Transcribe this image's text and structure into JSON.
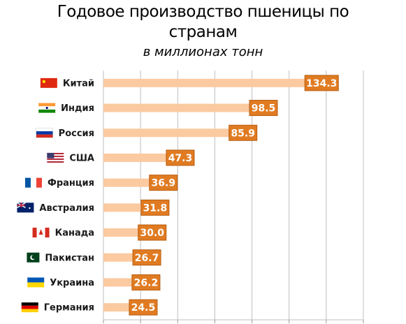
{
  "title_line1": "Годовое производство пшеницы по",
  "title_line2": "странам",
  "subtitle": "в миллионах тонн",
  "colors": {
    "bar": "#fbcaa0",
    "label_box": "#e07b22",
    "label_border": "#b85d10",
    "grid": "#bfbfbf"
  },
  "chart_data": {
    "type": "bar",
    "orientation": "horizontal",
    "title": "Годовое производство пшеницы по странам",
    "subtitle": "в миллионах тонн",
    "categories": [
      "Китай",
      "Индия",
      "Россия",
      "США",
      "Франция",
      "Австралия",
      "Канада",
      "Пакистан",
      "Украина",
      "Германия"
    ],
    "values": [
      134.3,
      98.5,
      85.9,
      47.3,
      36.9,
      31.8,
      30.0,
      26.7,
      26.2,
      24.5
    ],
    "value_labels": [
      "134.3",
      "98.5",
      "85.9",
      "47.3",
      "36.9",
      "31.8",
      "30.0",
      "26.7",
      "26.2",
      "24.5"
    ],
    "flags": [
      "flag-cn",
      "flag-in",
      "flag-ru",
      "flag-us",
      "flag-fr",
      "flag-au",
      "flag-ca",
      "flag-pk",
      "flag-ua",
      "flag-de"
    ],
    "xlim": [
      0,
      160
    ],
    "grid": true,
    "legend": "none"
  }
}
